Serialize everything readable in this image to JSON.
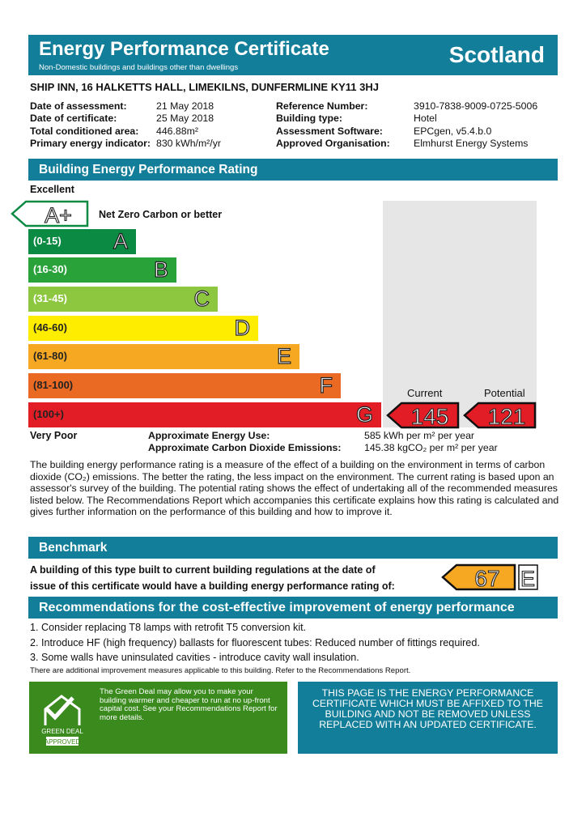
{
  "header": {
    "title": "Energy Performance Certificate",
    "subtitle": "Non-Domestic buildings and buildings other than dwellings",
    "region": "Scotland"
  },
  "address": "SHIP INN, 16 HALKETTS HALL, LIMEKILNS, DUNFERMLINE KY11 3HJ",
  "details": [
    {
      "label": "Date of assessment:",
      "value": "21 May 2018",
      "label2": "Reference Number:",
      "value2": "3910-7838-9009-0725-5006"
    },
    {
      "label": "Date of certificate:",
      "value": "25 May 2018",
      "label2": "Building type:",
      "value2": "Hotel"
    },
    {
      "label": "Total conditioned area:",
      "value": "446.88m²",
      "label2": "Assessment Software:",
      "value2": "EPCgen, v5.4.b.0"
    },
    {
      "label": "Primary energy indicator:",
      "value": "830 kWh/m²/yr",
      "label2": "Approved Organisation:",
      "value2": "Elmhurst Energy Systems"
    }
  ],
  "rating": {
    "section_title": "Building Energy Performance Rating",
    "top_label": "Excellent",
    "bottom_label": "Very Poor",
    "aplus": {
      "letter": "A+",
      "text": "Net Zero Carbon or better"
    },
    "bands": [
      {
        "range": "(0-15)",
        "letter": "A",
        "color": "#0b8a43"
      },
      {
        "range": "(16-30)",
        "letter": "B",
        "color": "#2aa23a"
      },
      {
        "range": "(31-45)",
        "letter": "C",
        "color": "#8dc63f"
      },
      {
        "range": "(46-60)",
        "letter": "D",
        "color": "#ffed00"
      },
      {
        "range": "(61-80)",
        "letter": "E",
        "color": "#f7a823"
      },
      {
        "range": "(81-100)",
        "letter": "F",
        "color": "#eb6a23"
      },
      {
        "range": "(100+)",
        "letter": "G",
        "color": "#e31d25"
      }
    ],
    "current_label": "Current",
    "current_value": "145",
    "potential_label": "Potential",
    "potential_value": "121",
    "energy_use_label": "Approximate Energy Use:",
    "energy_use_value": "585 kWh per m² per year",
    "co2_label": "Approximate Carbon Dioxide Emissions:",
    "co2_value": "145.38 kgCO₂ per m² per year"
  },
  "description": "The building energy performance rating is a measure of the effect of a building on the environment in terms of carbon dioxide (CO₂) emissions. The better the rating, the less impact on the environment. The current rating is based upon an assessor's survey of the building. The potential rating shows the effect of undertaking all of the recommended measures listed below. The Recommendations Report which accompanies this certificate explains how this rating is calculated and gives further information on the performance of this building and how to improve it.",
  "benchmark": {
    "title": "Benchmark",
    "line1": "A building of this type built to current building regulations at the date of",
    "line2": "issue of this certificate would have a building energy performance rating of:",
    "value": "67",
    "letter": "E",
    "color": "#f7a823"
  },
  "recommendations": {
    "title": "Recommendations for the cost-effective improvement of energy performance",
    "items": [
      "1. Consider replacing T8 lamps with retrofit T5 conversion kit.",
      "2. Introduce HF (high frequency) ballasts for fluorescent tubes: Reduced number of fittings required.",
      "3. Some walls have uninsulated cavities - introduce cavity wall insulation."
    ],
    "note": "There are additional improvement measures applicable to this building. Refer to the Recommendations Report."
  },
  "green_deal": {
    "logo_line1": "GREEN DEAL",
    "logo_line2": "APPROVED",
    "text": "The Green Deal may allow you to make your building warmer and cheaper to run at no up-front capital cost. See your Recommendations Report for more details."
  },
  "notice": "THIS PAGE IS THE ENERGY PERFORMANCE CERTIFICATE WHICH MUST BE AFFIXED TO THE BUILDING AND NOT BE REMOVED UNLESS REPLACED WITH AN UPDATED CERTIFICATE."
}
